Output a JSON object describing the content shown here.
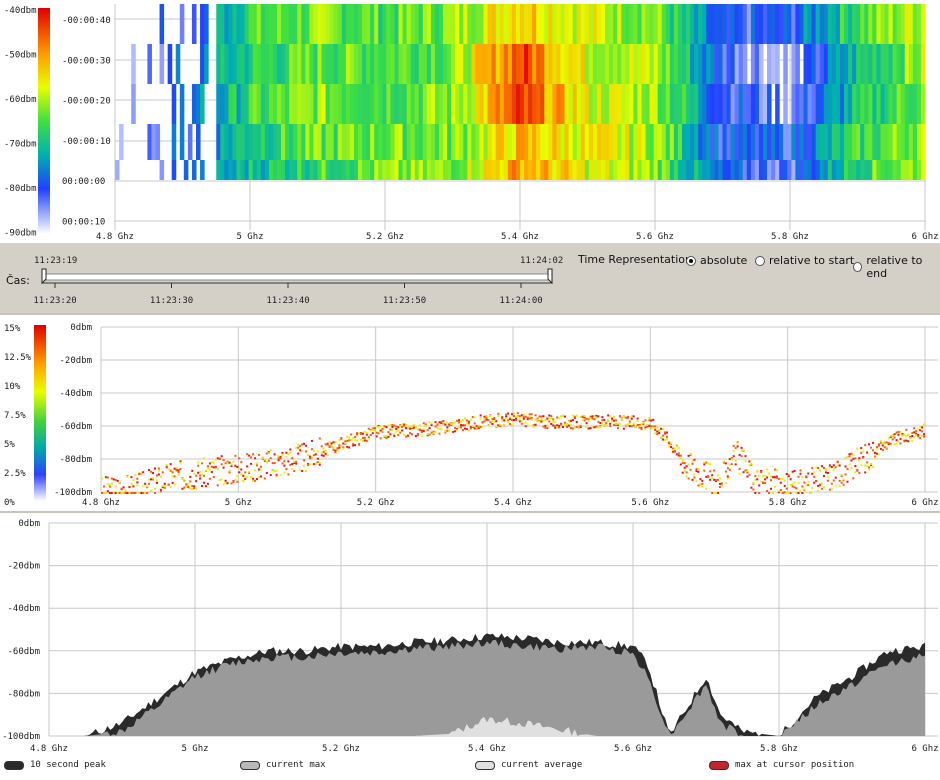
{
  "waterfall": {
    "scale_labels": [
      "-40dbm",
      "-50dbm",
      "-60dbm",
      "-70dbm",
      "-80dbm",
      "-90dbm"
    ],
    "time_labels": [
      "-00:00:40",
      "-00:00:30",
      "-00:00:20",
      "-00:00:10",
      "00:00:00",
      "00:00:10"
    ],
    "freq_labels": [
      "4.8 Ghz",
      "5 Ghz",
      "5.2 Ghz",
      "5.4 Ghz",
      "5.6 Ghz",
      "5.8 Ghz",
      "6 Ghz"
    ]
  },
  "timebar": {
    "cas_label": "Čas:",
    "range_start": "11:23:19",
    "range_end": "11:24:02",
    "ticks": [
      "11:23:20",
      "11:23:30",
      "11:23:40",
      "11:23:50",
      "11:24:00"
    ],
    "time_rep_label": "Time Representation:",
    "options": [
      {
        "label": "absolute",
        "selected": true
      },
      {
        "label": "relative to start",
        "selected": false
      },
      {
        "label": "relative to end",
        "selected": false
      }
    ]
  },
  "density": {
    "percent_labels": [
      "15%",
      "12.5%",
      "10%",
      "7.5%",
      "5%",
      "2.5%",
      "0%"
    ],
    "dbm_labels": [
      "0dbm",
      "-20dbm",
      "-40dbm",
      "-60dbm",
      "-80dbm",
      "-100dbm"
    ],
    "freq_labels": [
      "4.8 Ghz",
      "5 Ghz",
      "5.2 Ghz",
      "5.4 Ghz",
      "5.6 Ghz",
      "5.8 Ghz",
      "6 Ghz"
    ]
  },
  "spectrum": {
    "dbm_labels": [
      "0dbm",
      "-20dbm",
      "-40dbm",
      "-60dbm",
      "-80dbm",
      "-100dbm"
    ],
    "freq_labels": [
      "4.8 Ghz",
      "5 Ghz",
      "5.2 Ghz",
      "5.4 Ghz",
      "5.6 Ghz",
      "5.8 Ghz",
      "6 Ghz"
    ]
  },
  "legend": [
    {
      "label": "10 second peak",
      "color": "#2a2a2a"
    },
    {
      "label": "current max",
      "color": "#b8b8b8"
    },
    {
      "label": "current average",
      "color": "#e0e0e0"
    },
    {
      "label": "max at cursor position",
      "color": "#c0272d"
    }
  ],
  "chart_data": [
    {
      "type": "heatmap",
      "title": "",
      "x": [
        4.8,
        4.9,
        5.0,
        5.1,
        5.2,
        5.3,
        5.4,
        5.5,
        5.6,
        5.7,
        5.8,
        5.9,
        6.0
      ],
      "xlim": [
        4.8,
        6.0
      ],
      "y": [
        "-00:00:40",
        "-00:00:30",
        "-00:00:20",
        "-00:00:10",
        "00:00:00"
      ],
      "colorscale_dbm": [
        -90,
        -40
      ],
      "values_dbm": [
        [
          -90,
          -80,
          -66,
          -63,
          -65,
          -62,
          -52,
          -58,
          -62,
          -82,
          -80,
          -65,
          -58
        ],
        [
          -90,
          -79,
          -68,
          -64,
          -64,
          -63,
          -44,
          -58,
          -60,
          -80,
          -88,
          -70,
          -60
        ],
        [
          -90,
          -80,
          -67,
          -62,
          -64,
          -62,
          -45,
          -58,
          -60,
          -79,
          -85,
          -70,
          -62
        ],
        [
          -90,
          -79,
          -68,
          -64,
          -63,
          -63,
          -53,
          -57,
          -60,
          -80,
          -80,
          -67,
          -60
        ],
        [
          -90,
          -82,
          -70,
          -66,
          -63,
          -62,
          -50,
          -58,
          -61,
          -80,
          -82,
          -66,
          -60
        ]
      ]
    },
    {
      "type": "scatter",
      "title": "",
      "xlim": [
        4.8,
        6.0
      ],
      "ylim": [
        -100,
        0
      ],
      "colorscale_percent": [
        0,
        15
      ],
      "x": [
        4.8,
        4.85,
        4.9,
        4.95,
        5.0,
        5.05,
        5.1,
        5.15,
        5.2,
        5.25,
        5.3,
        5.35,
        5.4,
        5.45,
        5.5,
        5.55,
        5.6,
        5.62,
        5.65,
        5.7,
        5.72,
        5.75,
        5.8,
        5.85,
        5.9,
        5.95,
        6.0
      ],
      "y": [
        -99,
        -97,
        -90,
        -88,
        -85,
        -82,
        -78,
        -70,
        -63,
        -62,
        -60,
        -57,
        -55,
        -57,
        -57,
        -57,
        -58,
        -65,
        -82,
        -95,
        -75,
        -92,
        -96,
        -92,
        -82,
        -68,
        -62
      ]
    },
    {
      "type": "area",
      "title": "",
      "xlim": [
        4.8,
        6.0
      ],
      "ylim": [
        -100,
        0
      ],
      "x": [
        4.8,
        4.85,
        4.9,
        4.95,
        5.0,
        5.05,
        5.1,
        5.15,
        5.2,
        5.25,
        5.3,
        5.35,
        5.4,
        5.45,
        5.5,
        5.55,
        5.6,
        5.62,
        5.65,
        5.7,
        5.72,
        5.75,
        5.8,
        5.85,
        5.9,
        5.95,
        6.0
      ],
      "series": [
        {
          "name": "10 second peak",
          "values": [
            -100,
            -100,
            -94,
            -82,
            -70,
            -64,
            -60,
            -60,
            -58,
            -58,
            -56,
            -55,
            -53,
            -54,
            -56,
            -56,
            -58,
            -66,
            -100,
            -72,
            -90,
            -98,
            -100,
            -82,
            -72,
            -60,
            -58
          ]
        },
        {
          "name": "current max",
          "values": [
            -100,
            -100,
            -98,
            -86,
            -72,
            -66,
            -63,
            -63,
            -61,
            -61,
            -59,
            -58,
            -56,
            -58,
            -59,
            -58,
            -61,
            -72,
            -100,
            -76,
            -94,
            -100,
            -100,
            -86,
            -76,
            -66,
            -62
          ]
        },
        {
          "name": "current average",
          "values": [
            -100,
            -100,
            -100,
            -100,
            -100,
            -100,
            -100,
            -100,
            -100,
            -100,
            -100,
            -99,
            -92,
            -94,
            -97,
            -100,
            -100,
            -100,
            -100,
            -100,
            -100,
            -100,
            -100,
            -100,
            -100,
            -100,
            -100
          ]
        }
      ]
    }
  ]
}
